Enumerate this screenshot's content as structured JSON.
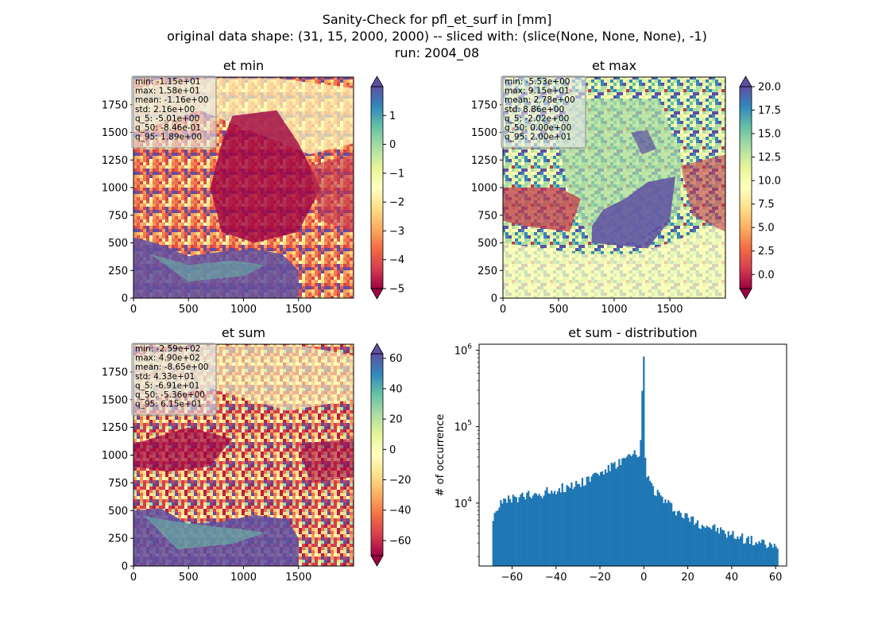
{
  "figure": {
    "title_lines": [
      "Sanity-Check for pfl_et_surf in [mm]",
      "original data shape: (31, 15, 2000, 2000) -- sliced with: (slice(None, None, None), -1)",
      "run: 2004_08"
    ]
  },
  "chart_data": [
    {
      "type": "heatmap",
      "title": "et min",
      "colormap": "Spectral",
      "xlim": [
        0,
        2000
      ],
      "ylim": [
        0,
        2000
      ],
      "xticks": [
        0,
        500,
        1000,
        1500
      ],
      "yticks": [
        0,
        250,
        500,
        750,
        1000,
        1250,
        1500,
        1750
      ],
      "color_range": [
        -5,
        2
      ],
      "colorbar_ticks": [
        {
          "v": -5,
          "label": "−5"
        },
        {
          "v": -4,
          "label": "−4"
        },
        {
          "v": -3,
          "label": "−3"
        },
        {
          "v": -2,
          "label": "−2"
        },
        {
          "v": -1,
          "label": "−1"
        },
        {
          "v": 0,
          "label": "0"
        },
        {
          "v": 1,
          "label": "1"
        }
      ],
      "stats": [
        "min: -1.15e+01",
        "max: 1.58e+01",
        "mean: -1.16e+00",
        "std: 2.16e+00",
        "q_5: -5.01e+00",
        "q_50: -8.46e-01",
        "q_95: 1.89e+00"
      ]
    },
    {
      "type": "heatmap",
      "title": "et max",
      "colormap": "Spectral",
      "xlim": [
        0,
        2000
      ],
      "ylim": [
        0,
        2000
      ],
      "xticks": [
        0,
        500,
        1000,
        1500
      ],
      "yticks": [
        0,
        250,
        500,
        750,
        1000,
        1250,
        1500,
        1750
      ],
      "color_range": [
        -1.5,
        20
      ],
      "colorbar_ticks": [
        {
          "v": 0,
          "label": "0.0"
        },
        {
          "v": 2.5,
          "label": "2.5"
        },
        {
          "v": 5,
          "label": "5.0"
        },
        {
          "v": 7.5,
          "label": "7.5"
        },
        {
          "v": 10,
          "label": "10.0"
        },
        {
          "v": 12.5,
          "label": "12.5"
        },
        {
          "v": 15,
          "label": "15.0"
        },
        {
          "v": 17.5,
          "label": "17.5"
        },
        {
          "v": 20,
          "label": "20.0"
        }
      ],
      "stats": [
        "min: -5.53e+00",
        "max: 9.15e+01",
        "mean: 2.78e+00",
        "std: 8.86e+00",
        "q_5: -2.02e+00",
        "q_50: 0.00e+00",
        "q_95: 2.00e+01"
      ]
    },
    {
      "type": "heatmap",
      "title": "et sum",
      "colormap": "Spectral",
      "xlim": [
        0,
        2000
      ],
      "ylim": [
        0,
        2000
      ],
      "xticks": [
        0,
        500,
        1000,
        1500
      ],
      "yticks": [
        0,
        250,
        500,
        750,
        1000,
        1250,
        1500,
        1750
      ],
      "color_range": [
        -70,
        63
      ],
      "colorbar_ticks": [
        {
          "v": -60,
          "label": "−60"
        },
        {
          "v": -40,
          "label": "−40"
        },
        {
          "v": -20,
          "label": "−20"
        },
        {
          "v": 0,
          "label": "0"
        },
        {
          "v": 20,
          "label": "20"
        },
        {
          "v": 40,
          "label": "40"
        },
        {
          "v": 60,
          "label": "60"
        }
      ],
      "stats": [
        "min: -2.59e+02",
        "max: 4.90e+02",
        "mean: -8.65e+00",
        "std: 4.33e+01",
        "q_5: -6.91e+01",
        "q_50: -5.36e+00",
        "q_95: 6.15e+01"
      ]
    },
    {
      "type": "bar",
      "title": "et sum - distribution",
      "ylabel": "# of occurrence",
      "yscale": "log",
      "xlim": [
        -75,
        65
      ],
      "ylim": [
        1500,
        1200000
      ],
      "xticks": [
        {
          "v": -60,
          "label": "−60"
        },
        {
          "v": -40,
          "label": "−40"
        },
        {
          "v": -20,
          "label": "−20"
        },
        {
          "v": 0,
          "label": "0"
        },
        {
          "v": 20,
          "label": "20"
        },
        {
          "v": 40,
          "label": "40"
        },
        {
          "v": 60,
          "label": "60"
        }
      ],
      "yticks_major": [
        {
          "v": 10000,
          "base": "10",
          "exp": "4"
        },
        {
          "v": 100000,
          "base": "10",
          "exp": "5"
        },
        {
          "v": 1000000,
          "base": "10",
          "exp": "6"
        }
      ],
      "histogram_points": [
        [
          -69,
          6500
        ],
        [
          -66,
          9800
        ],
        [
          -62,
          11000
        ],
        [
          -58,
          12000
        ],
        [
          -54,
          12500
        ],
        [
          -50,
          13000
        ],
        [
          -46,
          14000
        ],
        [
          -42,
          15000
        ],
        [
          -38,
          16000
        ],
        [
          -34,
          17000
        ],
        [
          -30,
          18500
        ],
        [
          -26,
          21000
        ],
        [
          -22,
          24000
        ],
        [
          -18,
          27000
        ],
        [
          -14,
          31000
        ],
        [
          -10,
          36000
        ],
        [
          -7,
          40000
        ],
        [
          -4,
          44000
        ],
        [
          -2,
          38000
        ],
        [
          -1,
          120000
        ],
        [
          -0.4,
          830000
        ],
        [
          0.2,
          80000
        ],
        [
          1,
          27000
        ],
        [
          3,
          18000
        ],
        [
          6,
          14000
        ],
        [
          10,
          10500
        ],
        [
          14,
          8500
        ],
        [
          18,
          7000
        ],
        [
          22,
          6200
        ],
        [
          26,
          5500
        ],
        [
          30,
          5000
        ],
        [
          34,
          4500
        ],
        [
          38,
          4000
        ],
        [
          42,
          3800
        ],
        [
          46,
          3500
        ],
        [
          50,
          3200
        ],
        [
          54,
          3000
        ],
        [
          58,
          2800
        ],
        [
          61,
          2500
        ]
      ],
      "bar_color": "#1f77b4"
    }
  ]
}
